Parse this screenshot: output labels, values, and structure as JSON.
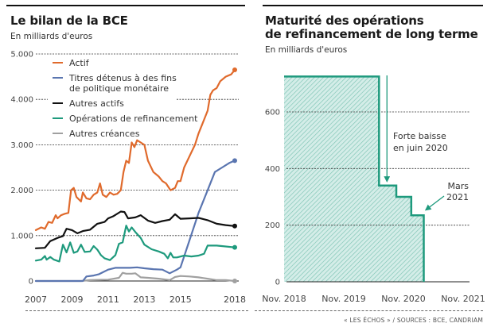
{
  "chart_data": [
    {
      "type": "line",
      "title": "Le bilan de la BCE",
      "subtitle": "En milliards d'euros",
      "xlabel": "",
      "ylabel": "",
      "ylim": [
        0,
        5000
      ],
      "xlim": [
        2007,
        2018
      ],
      "yticks": [
        {
          "value": 0,
          "label": "0"
        },
        {
          "value": 1000,
          "label": "1.000"
        },
        {
          "value": 2000,
          "label": "2.000"
        },
        {
          "value": 3000,
          "label": "3.000"
        },
        {
          "value": 4000,
          "label": "4.000"
        },
        {
          "value": 5000,
          "label": "5.000"
        }
      ],
      "xticks": [
        {
          "value": 2007,
          "label": "2007"
        },
        {
          "value": 2009,
          "label": "2009"
        },
        {
          "value": 2011,
          "label": "2011"
        },
        {
          "value": 2013,
          "label": "2013"
        },
        {
          "value": 2015,
          "label": "2015"
        },
        {
          "value": 2018,
          "label": "2018"
        }
      ],
      "grid": true,
      "legend_position": "top-left",
      "series": [
        {
          "name": "Actif",
          "color": "#e06a2c",
          "points": [
            [
              2007.0,
              1120
            ],
            [
              2007.3,
              1180
            ],
            [
              2007.5,
              1150
            ],
            [
              2007.7,
              1300
            ],
            [
              2007.9,
              1280
            ],
            [
              2008.1,
              1450
            ],
            [
              2008.2,
              1380
            ],
            [
              2008.4,
              1450
            ],
            [
              2008.6,
              1480
            ],
            [
              2008.8,
              1500
            ],
            [
              2008.95,
              2000
            ],
            [
              2009.1,
              2050
            ],
            [
              2009.25,
              1850
            ],
            [
              2009.5,
              1750
            ],
            [
              2009.6,
              1950
            ],
            [
              2009.8,
              1820
            ],
            [
              2010.0,
              1800
            ],
            [
              2010.2,
              1900
            ],
            [
              2010.4,
              1950
            ],
            [
              2010.55,
              2150
            ],
            [
              2010.7,
              1900
            ],
            [
              2010.9,
              1850
            ],
            [
              2011.1,
              1950
            ],
            [
              2011.3,
              1900
            ],
            [
              2011.5,
              1920
            ],
            [
              2011.7,
              2000
            ],
            [
              2011.85,
              2400
            ],
            [
              2012.0,
              2650
            ],
            [
              2012.15,
              2600
            ],
            [
              2012.3,
              3050
            ],
            [
              2012.45,
              2950
            ],
            [
              2012.6,
              3100
            ],
            [
              2012.8,
              3050
            ],
            [
              2013.0,
              3000
            ],
            [
              2013.2,
              2650
            ],
            [
              2013.5,
              2400
            ],
            [
              2013.8,
              2300
            ],
            [
              2014.0,
              2200
            ],
            [
              2014.2,
              2150
            ],
            [
              2014.45,
              2000
            ],
            [
              2014.7,
              2050
            ],
            [
              2014.85,
              2200
            ],
            [
              2015.0,
              2200
            ],
            [
              2015.2,
              2500
            ],
            [
              2015.5,
              2750
            ],
            [
              2015.8,
              3000
            ],
            [
              2016.0,
              3250
            ],
            [
              2016.3,
              3550
            ],
            [
              2016.5,
              3750
            ],
            [
              2016.65,
              4100
            ],
            [
              2016.8,
              4200
            ],
            [
              2017.0,
              4250
            ],
            [
              2017.2,
              4400
            ],
            [
              2017.5,
              4500
            ],
            [
              2017.8,
              4550
            ],
            [
              2018.0,
              4650
            ]
          ]
        },
        {
          "name": "Titres détenus à des fins de politique monétaire",
          "color": "#5a75b0",
          "points": [
            [
              2007.0,
              0
            ],
            [
              2008.0,
              0
            ],
            [
              2009.0,
              0
            ],
            [
              2009.6,
              0
            ],
            [
              2009.8,
              100
            ],
            [
              2010.2,
              120
            ],
            [
              2010.5,
              150
            ],
            [
              2011.0,
              250
            ],
            [
              2011.4,
              290
            ],
            [
              2011.8,
              290
            ],
            [
              2012.2,
              290
            ],
            [
              2012.6,
              300
            ],
            [
              2013.0,
              280
            ],
            [
              2013.5,
              260
            ],
            [
              2014.0,
              250
            ],
            [
              2014.4,
              170
            ],
            [
              2014.8,
              250
            ],
            [
              2015.0,
              300
            ],
            [
              2015.5,
              900
            ],
            [
              2016.0,
              1500
            ],
            [
              2016.5,
              2000
            ],
            [
              2016.9,
              2400
            ],
            [
              2017.3,
              2500
            ],
            [
              2017.7,
              2600
            ],
            [
              2018.0,
              2650
            ]
          ]
        },
        {
          "name": "Autres actifs",
          "color": "#111111",
          "points": [
            [
              2007.0,
              720
            ],
            [
              2007.5,
              730
            ],
            [
              2007.8,
              880
            ],
            [
              2008.2,
              950
            ],
            [
              2008.5,
              990
            ],
            [
              2008.7,
              1150
            ],
            [
              2009.0,
              1120
            ],
            [
              2009.3,
              1050
            ],
            [
              2009.6,
              1100
            ],
            [
              2010.0,
              1130
            ],
            [
              2010.4,
              1260
            ],
            [
              2010.8,
              1300
            ],
            [
              2011.0,
              1380
            ],
            [
              2011.3,
              1430
            ],
            [
              2011.7,
              1530
            ],
            [
              2011.9,
              1520
            ],
            [
              2012.1,
              1380
            ],
            [
              2012.5,
              1400
            ],
            [
              2012.8,
              1450
            ],
            [
              2013.2,
              1330
            ],
            [
              2013.6,
              1280
            ],
            [
              2014.0,
              1320
            ],
            [
              2014.4,
              1350
            ],
            [
              2014.7,
              1470
            ],
            [
              2015.0,
              1370
            ],
            [
              2015.5,
              1380
            ],
            [
              2016.0,
              1390
            ],
            [
              2016.5,
              1340
            ],
            [
              2017.0,
              1260
            ],
            [
              2017.5,
              1230
            ],
            [
              2018.0,
              1210
            ]
          ]
        },
        {
          "name": "Opérations de refinancement",
          "color": "#1e9a7d",
          "points": [
            [
              2007.0,
              450
            ],
            [
              2007.3,
              470
            ],
            [
              2007.5,
              550
            ],
            [
              2007.6,
              470
            ],
            [
              2007.8,
              530
            ],
            [
              2008.0,
              470
            ],
            [
              2008.3,
              430
            ],
            [
              2008.5,
              800
            ],
            [
              2008.7,
              630
            ],
            [
              2008.9,
              850
            ],
            [
              2009.1,
              620
            ],
            [
              2009.3,
              650
            ],
            [
              2009.5,
              800
            ],
            [
              2009.7,
              640
            ],
            [
              2010.0,
              650
            ],
            [
              2010.2,
              770
            ],
            [
              2010.4,
              690
            ],
            [
              2010.6,
              570
            ],
            [
              2010.8,
              500
            ],
            [
              2011.1,
              460
            ],
            [
              2011.4,
              570
            ],
            [
              2011.6,
              820
            ],
            [
              2011.8,
              850
            ],
            [
              2012.0,
              1220
            ],
            [
              2012.15,
              1090
            ],
            [
              2012.3,
              1180
            ],
            [
              2012.5,
              1080
            ],
            [
              2012.8,
              950
            ],
            [
              2013.0,
              800
            ],
            [
              2013.4,
              700
            ],
            [
              2013.8,
              650
            ],
            [
              2014.1,
              600
            ],
            [
              2014.3,
              500
            ],
            [
              2014.45,
              620
            ],
            [
              2014.6,
              520
            ],
            [
              2014.8,
              520
            ],
            [
              2015.2,
              560
            ],
            [
              2015.6,
              540
            ],
            [
              2016.0,
              560
            ],
            [
              2016.3,
              600
            ],
            [
              2016.5,
              780
            ],
            [
              2017.0,
              780
            ],
            [
              2017.5,
              760
            ],
            [
              2018.0,
              740
            ]
          ]
        },
        {
          "name": "Autres créances",
          "color": "#a0a0a0",
          "points": [
            [
              2007.0,
              0
            ],
            [
              2009.5,
              0
            ],
            [
              2010.0,
              20
            ],
            [
              2011.0,
              30
            ],
            [
              2011.6,
              70
            ],
            [
              2011.8,
              180
            ],
            [
              2012.0,
              160
            ],
            [
              2012.3,
              160
            ],
            [
              2012.5,
              170
            ],
            [
              2012.8,
              80
            ],
            [
              2013.2,
              70
            ],
            [
              2013.8,
              50
            ],
            [
              2014.4,
              20
            ],
            [
              2014.7,
              90
            ],
            [
              2015.0,
              110
            ],
            [
              2015.5,
              100
            ],
            [
              2016.0,
              80
            ],
            [
              2016.5,
              50
            ],
            [
              2017.0,
              20
            ],
            [
              2017.5,
              20
            ],
            [
              2018.0,
              0
            ]
          ]
        }
      ]
    },
    {
      "type": "area",
      "title": "Maturité des opérations de refinancement de long terme",
      "subtitle": "En milliards d'euros",
      "xlabel": "",
      "ylabel": "",
      "ylim": [
        0,
        750
      ],
      "yticks": [
        {
          "value": 0,
          "label": "0"
        },
        {
          "value": 200,
          "label": "200"
        },
        {
          "value": 400,
          "label": "400"
        },
        {
          "value": 600,
          "label": "600"
        }
      ],
      "xticks": [
        {
          "value": 2018.83,
          "label": "Nov. 2018"
        },
        {
          "value": 2019.83,
          "label": "Nov. 2019"
        },
        {
          "value": 2020.83,
          "label": "Nov. 2020"
        },
        {
          "value": 2021.83,
          "label": "Nov. 2021"
        }
      ],
      "xlim": [
        2018.8,
        2021.9
      ],
      "grid": true,
      "color": "#1e9a7d",
      "steps": [
        {
          "from": 2018.83,
          "to": 2020.42,
          "value": 725
        },
        {
          "from": 2020.42,
          "to": 2020.71,
          "value": 340
        },
        {
          "from": 2020.71,
          "to": 2020.96,
          "value": 300
        },
        {
          "from": 2020.96,
          "to": 2021.17,
          "value": 235
        }
      ],
      "annotations": [
        {
          "text_lines": [
            "Forte baisse",
            "en juin 2020"
          ],
          "target": "drop june 2020"
        },
        {
          "text_lines": [
            "Mars",
            "2021"
          ],
          "target": "end march 2021"
        }
      ]
    }
  ],
  "legend": [
    {
      "lines": [
        "Actif"
      ],
      "color": "#e06a2c"
    },
    {
      "lines": [
        "Titres détenus à des fins",
        "de politique monétaire"
      ],
      "color": "#5a75b0"
    },
    {
      "lines": [
        "Autres actifs"
      ],
      "color": "#111111"
    },
    {
      "lines": [
        "Opérations de refinancement"
      ],
      "color": "#1e9a7d"
    },
    {
      "lines": [
        "Autres créances"
      ],
      "color": "#a0a0a0"
    }
  ],
  "left": {
    "title": "Le bilan de la BCE",
    "subtitle": "En milliards d'euros"
  },
  "right": {
    "title_line1": "Maturité des opérations",
    "title_line2": "de refinancement de long terme",
    "subtitle": "En milliards d'euros"
  },
  "source": "« LES ÉCHOS » / SOURCES : BCE, CANDRIAM"
}
